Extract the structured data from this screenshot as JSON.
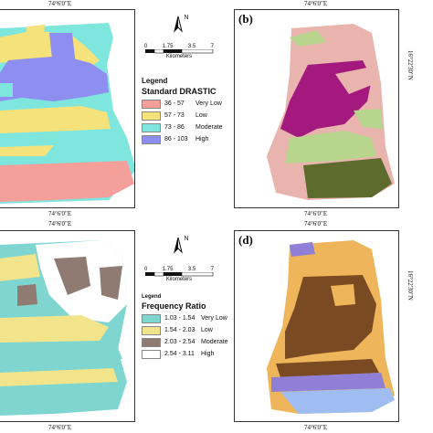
{
  "coords": {
    "lon_top": "74°6'0\"E",
    "lon_bottom": "74°6'0\"E",
    "lat_right": "16°22'30\"N"
  },
  "panels": {
    "a": {
      "label": ""
    },
    "b": {
      "label": "(b)"
    },
    "c": {
      "label": ""
    },
    "d": {
      "label": "(d)"
    }
  },
  "north_arrow": {
    "letter": "N"
  },
  "scale": {
    "ticks": [
      "0",
      "1.75",
      "3.5",
      "7"
    ],
    "unit": "Kilometers"
  },
  "legend_drastic": {
    "title": "Legend",
    "heading": "Standard DRASTIC",
    "items": [
      {
        "range": "36 - 57",
        "class": "Very Low",
        "color": "#f59f9b"
      },
      {
        "range": "57 - 73",
        "class": "Low",
        "color": "#f5e27a"
      },
      {
        "range": "73 - 86",
        "class": "Moderate",
        "color": "#7fe6de"
      },
      {
        "range": "86 - 103",
        "class": "High",
        "color": "#8e8ef0"
      }
    ]
  },
  "legend_fr": {
    "title": "Legend",
    "heading": "Frequency Ratio",
    "items": [
      {
        "range": "1.03 - 1.54",
        "class": "Very Low",
        "color": "#7fd6d0"
      },
      {
        "range": "1.54 - 2.03",
        "class": "Low",
        "color": "#f2e48a"
      },
      {
        "range": "2.03 - 2.54",
        "class": "Moderate",
        "color": "#8f7b72"
      },
      {
        "range": "2.54 - 3.11",
        "class": "High",
        "color": "#ffffff"
      }
    ]
  },
  "map_colors": {
    "b": {
      "c1": "#e8b4ad",
      "c2": "#a3197d",
      "c3": "#b7d58c",
      "c4": "#5d6b2c"
    },
    "d": {
      "c1": "#efb55a",
      "c2": "#7a4a22",
      "c3": "#8f7fd6",
      "c4": "#9fbdf0"
    }
  }
}
